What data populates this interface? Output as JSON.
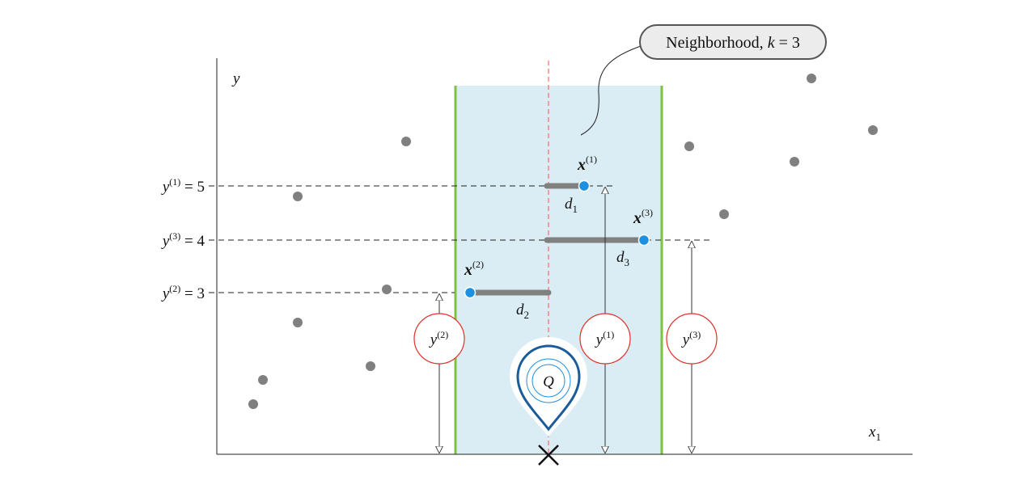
{
  "colors": {
    "neighborhood_fill": "#dbedf4",
    "boundary_green": "#7dc242",
    "query_line_red": "#f26b6b",
    "point_gray": "#808080",
    "neighbor_blue": "#1e90e0",
    "distance_bar": "#808080",
    "pin_blue": "#1a5c99",
    "label_circle_red": "#e0302a"
  },
  "axes": {
    "y_label": "y",
    "x_label_base": "x",
    "x_label_sub": "1"
  },
  "callout": {
    "text_prefix": "Neighborhood, ",
    "k_var": "k",
    "text_suffix": " = 3"
  },
  "levels": [
    {
      "base": "y",
      "sup": "(1)",
      "suffix": " = 5"
    },
    {
      "base": "y",
      "sup": "(3)",
      "suffix": " = 4"
    },
    {
      "base": "y",
      "sup": "(2)",
      "suffix": " = 3"
    }
  ],
  "neighbors": [
    {
      "base": "x",
      "sup": "(1)",
      "d_base": "d",
      "d_sub": "1"
    },
    {
      "base": "x",
      "sup": "(3)",
      "d_base": "d",
      "d_sub": "3"
    },
    {
      "base": "x",
      "sup": "(2)",
      "d_base": "d",
      "d_sub": "2"
    }
  ],
  "target_circles": [
    {
      "base": "y",
      "sup": "(2)"
    },
    {
      "base": "y",
      "sup": "(1)"
    },
    {
      "base": "y",
      "sup": "(3)"
    }
  ],
  "query": {
    "label": "Q",
    "marker_icon": "location-pin-icon",
    "x_marker_icon": "cross-icon"
  }
}
